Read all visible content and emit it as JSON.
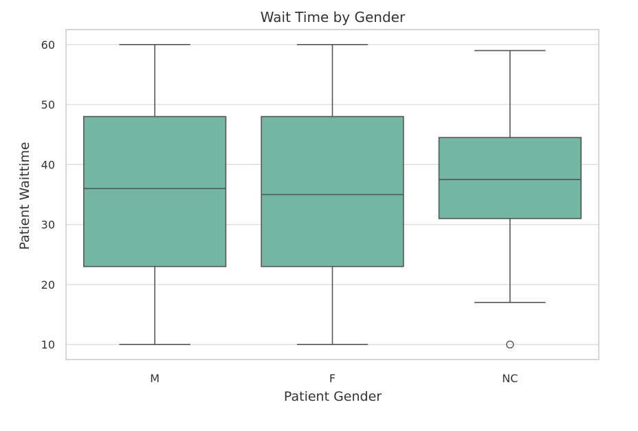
{
  "chart_data": {
    "type": "boxplot",
    "title": "Wait Time by Gender",
    "xlabel": "Patient Gender",
    "ylabel": "Patient Waittime",
    "ylim": [
      7.5,
      62.5
    ],
    "yticks": [
      10,
      20,
      30,
      40,
      50,
      60
    ],
    "grid": true,
    "categories": [
      "M",
      "F",
      "NC"
    ],
    "boxes": [
      {
        "category": "M",
        "whisker_low": 10,
        "q1": 23,
        "median": 36,
        "q3": 48,
        "whisker_high": 60,
        "outliers": []
      },
      {
        "category": "F",
        "whisker_low": 10,
        "q1": 23,
        "median": 35,
        "q3": 48,
        "whisker_high": 60,
        "outliers": []
      },
      {
        "category": "NC",
        "whisker_low": 17,
        "q1": 31,
        "median": 37.5,
        "q3": 44.5,
        "whisker_high": 59,
        "outliers": [
          10
        ]
      }
    ],
    "colors": {
      "box_fill": "#73b6a1",
      "line": "#555555"
    }
  }
}
